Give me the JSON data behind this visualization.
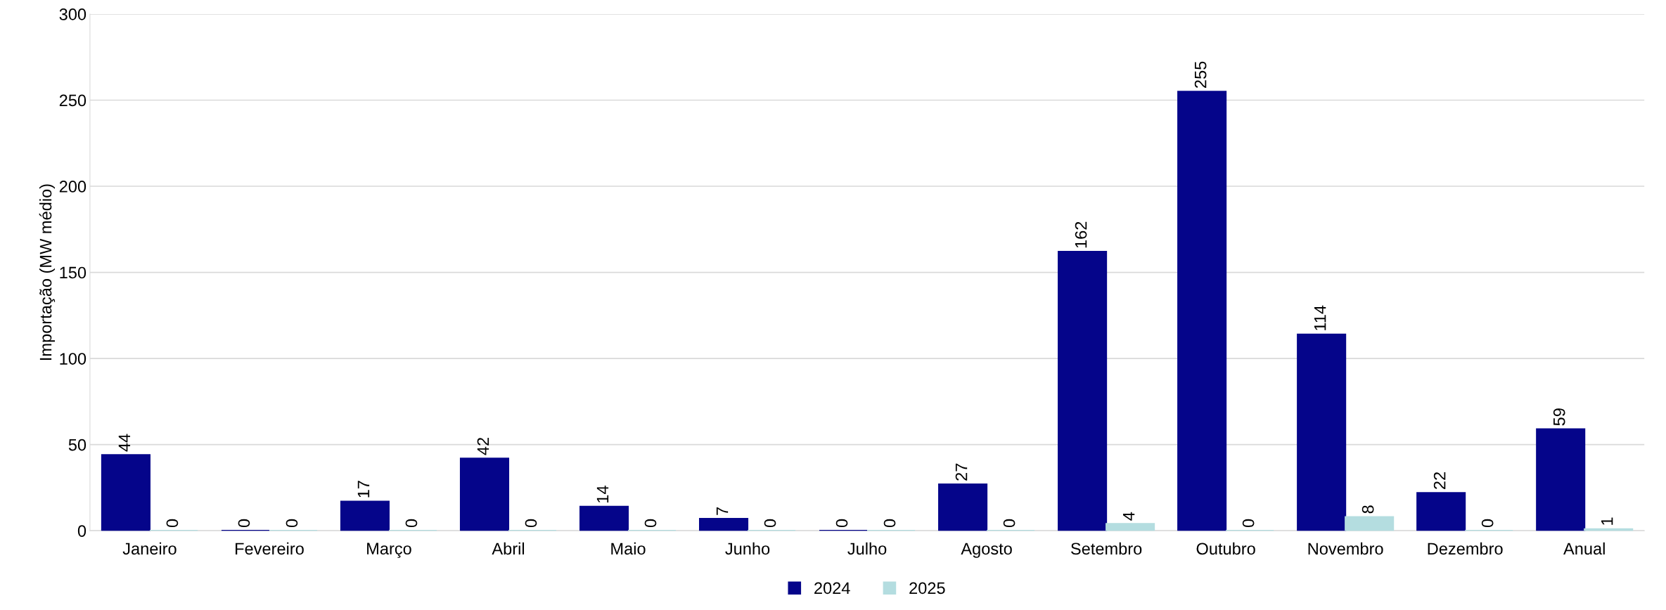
{
  "chart_data": {
    "type": "bar",
    "ylabel": "Importação (MW médio)",
    "categories": [
      "Janeiro",
      "Fevereiro",
      "Março",
      "Abril",
      "Maio",
      "Junho",
      "Julho",
      "Agosto",
      "Setembro",
      "Outubro",
      "Novembro",
      "Dezembro",
      "Anual"
    ],
    "series": [
      {
        "name": "2024",
        "color": "#05058a",
        "values": [
          44,
          0,
          17,
          42,
          14,
          7,
          0,
          27,
          162,
          255,
          114,
          22,
          59
        ]
      },
      {
        "name": "2025",
        "color": "#b4dde0",
        "values": [
          0,
          0,
          0,
          0,
          0,
          0,
          0,
          0,
          4,
          0,
          8,
          0,
          1
        ]
      }
    ],
    "ylim": [
      0,
      300
    ],
    "yticks": [
      0,
      50,
      100,
      150,
      200,
      250,
      300
    ],
    "grid": "y",
    "legend": "bottom",
    "data_labels": true
  }
}
